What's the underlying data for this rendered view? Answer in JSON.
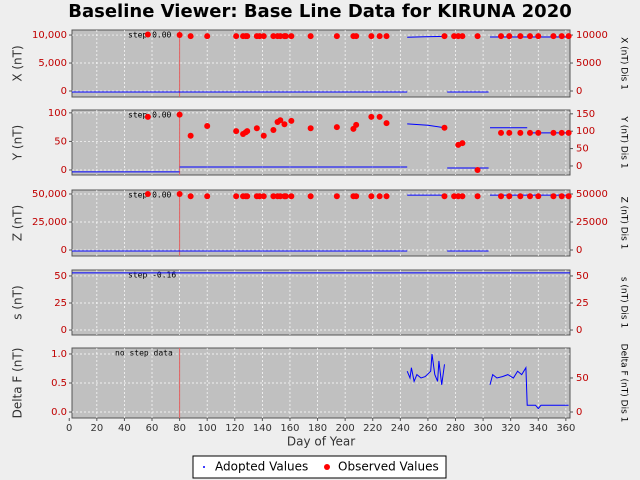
{
  "title": "Baseline Viewer: Base Line Data for KIRUNA 2020",
  "chart_data": [
    {
      "type": "line",
      "ylabel": "X (nT)",
      "y2label": "X (nT)  Dis 1",
      "step_label": "step 0.00",
      "step_x": 80,
      "xlim": [
        2,
        363
      ],
      "ylim": [
        -1070,
        10900
      ],
      "y2lim": [
        -1070,
        10900
      ],
      "yticks": [
        0,
        {
          "value": 5000,
          "label": "5,000"
        },
        {
          "value": 10000,
          "label": "10,000"
        }
      ],
      "y2ticks": [
        0,
        5000,
        10000
      ],
      "series": [
        {
          "name": "Adopted Values",
          "color": "#0000ff",
          "axis": "y2",
          "x": [
            2,
            245,
            null,
            245,
            258,
            272,
            null,
            274,
            304,
            null,
            305,
            363
          ],
          "values": [
            -180,
            -180,
            null,
            9600,
            9680,
            9750,
            null,
            -180,
            -180,
            null,
            9650,
            9650
          ]
        },
        {
          "name": "Observed Values",
          "color": "#ff0000",
          "axis": "y",
          "x": [
            57,
            80,
            88,
            100,
            121,
            126,
            128,
            129,
            136,
            138,
            141,
            148,
            151,
            153,
            156,
            157,
            161,
            175,
            194,
            206,
            208,
            219,
            225,
            230,
            272,
            279,
            282,
            285,
            296,
            313,
            319,
            327,
            334,
            340,
            351,
            357,
            362
          ],
          "values": [
            10100,
            10000,
            9800,
            9800,
            9800,
            9800,
            9800,
            9800,
            9800,
            9800,
            9800,
            9800,
            9800,
            9800,
            9800,
            9800,
            9800,
            9800,
            9800,
            9800,
            9800,
            9800,
            9800,
            9800,
            9800,
            9800,
            9800,
            9800,
            9800,
            9800,
            9800,
            9800,
            9800,
            9800,
            9800,
            9800,
            9800
          ]
        }
      ]
    },
    {
      "type": "line",
      "ylabel": "Y (nT)",
      "y2label": "Y (nT)  Dis 1",
      "step_label": "step 0.00",
      "step_x": 80,
      "xlim": [
        2,
        363
      ],
      "ylim": [
        -8.8,
        105
      ],
      "y2lim": [
        -26,
        161
      ],
      "yticks": [
        0,
        50,
        100
      ],
      "y2ticks": [
        0,
        50,
        100,
        150
      ],
      "series": [
        {
          "color": "#0000ff",
          "axis": "y2",
          "x": [
            2,
            80,
            null,
            80,
            245,
            null,
            245,
            260,
            272,
            null,
            274,
            304,
            null,
            305,
            332,
            null,
            332,
            363
          ],
          "values": [
            -17,
            -17,
            null,
            -3,
            -3,
            null,
            121,
            117,
            110,
            null,
            -6,
            -6,
            null,
            110,
            110,
            null,
            95,
            95
          ]
        },
        {
          "color": "#ff0000",
          "axis": "y",
          "x": [
            57,
            80,
            88,
            100,
            121,
            126,
            128,
            129,
            136,
            141,
            148,
            151,
            153,
            156,
            161,
            175,
            194,
            206,
            208,
            219,
            225,
            230,
            272,
            282,
            285,
            296,
            313,
            319,
            327,
            334,
            340,
            351,
            357,
            362
          ],
          "values": [
            93,
            97,
            60,
            77,
            68,
            63,
            66,
            68,
            73,
            60,
            70,
            84,
            87,
            80,
            86,
            73,
            75,
            72,
            79,
            93,
            93,
            82,
            74,
            44,
            47,
            0,
            65,
            65,
            65,
            65,
            65,
            65,
            65,
            65
          ]
        }
      ]
    },
    {
      "type": "line",
      "ylabel": "Z (nT)",
      "y2label": "Z (nT)  Dis 1",
      "step_label": "step 0.00",
      "step_x": 80,
      "xlim": [
        2,
        363
      ],
      "ylim": [
        -5357,
        53570
      ],
      "y2lim": [
        -5357,
        53570
      ],
      "yticks": [
        0,
        {
          "value": 25000,
          "label": "25,000"
        },
        {
          "value": 50000,
          "label": "50,000"
        }
      ],
      "y2ticks": [
        0,
        25000,
        50000
      ],
      "series": [
        {
          "color": "#0000ff",
          "axis": "y2",
          "x": [
            2,
            245,
            null,
            245,
            272,
            null,
            274,
            304,
            null,
            305,
            363
          ],
          "values": [
            -900,
            -900,
            null,
            49000,
            49000,
            null,
            -900,
            -900,
            null,
            49000,
            49000
          ]
        },
        {
          "color": "#ff0000",
          "axis": "y",
          "x": [
            57,
            80,
            88,
            100,
            121,
            126,
            128,
            129,
            136,
            138,
            141,
            148,
            151,
            153,
            156,
            157,
            161,
            175,
            194,
            206,
            208,
            219,
            225,
            230,
            272,
            279,
            282,
            285,
            296,
            313,
            319,
            327,
            334,
            340,
            351,
            357,
            362
          ],
          "values": [
            50000,
            50000,
            48000,
            48000,
            48000,
            48000,
            48000,
            48000,
            48000,
            48000,
            48000,
            48000,
            48000,
            48000,
            48000,
            48000,
            48000,
            48000,
            48000,
            48000,
            48000,
            48000,
            48000,
            48000,
            48000,
            48000,
            48000,
            48000,
            48000,
            48000,
            48000,
            48000,
            48000,
            48000,
            48000,
            48000,
            48000
          ]
        }
      ]
    },
    {
      "type": "line",
      "ylabel": "s (nT)",
      "y2label": "s (nT)  Dis 1",
      "step_label": "step -0.16",
      "xlim": [
        2,
        363
      ],
      "ylim": [
        -4.6,
        55.5
      ],
      "y2lim": [
        -4.6,
        55.5
      ],
      "yticks": [
        0,
        25,
        50
      ],
      "y2ticks": [
        0,
        25,
        50
      ],
      "series": [
        {
          "color": "#0000ff",
          "axis": "y2",
          "x": [
            2,
            363
          ],
          "values": [
            52.8,
            52.8
          ]
        }
      ]
    },
    {
      "type": "line",
      "ylabel": "Delta F (nT)",
      "y2label": "Delta F (nT)  Dis 1",
      "step_label": "no step data",
      "step_x": 80,
      "xlim": [
        2,
        363
      ],
      "ylim": [
        -0.103,
        1.103
      ],
      "y2lim": [
        -8.8,
        94
      ],
      "yticks": [
        {
          "value": 0,
          "label": "0.0"
        },
        0.5,
        {
          "value": 1,
          "label": "1.0"
        }
      ],
      "y2ticks": [
        0,
        50
      ],
      "xlabel": "Day of Year",
      "xticks": [
        0,
        20,
        40,
        60,
        80,
        100,
        120,
        140,
        160,
        180,
        200,
        220,
        240,
        260,
        280,
        300,
        320,
        340,
        360
      ],
      "series": [
        {
          "color": "#0000ff",
          "axis": "y2",
          "x": [
            245,
            247,
            248,
            250,
            252,
            255,
            258,
            262,
            263,
            265,
            267,
            268,
            270,
            272,
            null,
            305,
            307,
            310,
            314,
            318,
            322,
            325,
            328,
            331,
            332,
            338,
            340,
            342,
            362
          ],
          "values": [
            60,
            50,
            65,
            45,
            55,
            50,
            52,
            60,
            85,
            55,
            45,
            75,
            40,
            70,
            null,
            40,
            55,
            50,
            52,
            55,
            50,
            60,
            55,
            65,
            10,
            10,
            5,
            10,
            10
          ]
        }
      ]
    }
  ]
}
